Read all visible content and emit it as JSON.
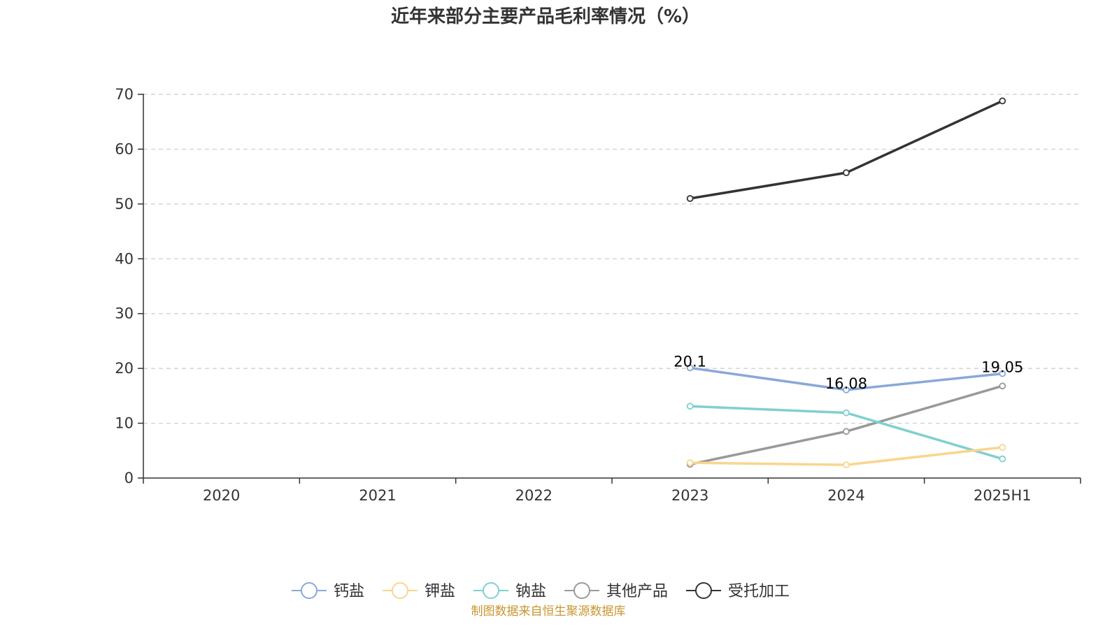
{
  "source_note": "制图数据来自恒生聚源数据库",
  "colors": {
    "source": "#c8962e",
    "axis": "#333333",
    "grid": "#cccccc"
  },
  "chart_data": {
    "type": "line",
    "title": "近年来部分主要产品毛利率情况（%）",
    "categories": [
      "2020",
      "2021",
      "2022",
      "2023",
      "2024",
      "2025H1"
    ],
    "ylim": [
      0,
      70
    ],
    "yticks": [
      0,
      10,
      20,
      30,
      40,
      50,
      60,
      70
    ],
    "grid": true,
    "legend_position": "bottom",
    "series": [
      {
        "name": "钙盐",
        "color": "#8aa8d8",
        "values": [
          null,
          null,
          null,
          20.1,
          16.08,
          19.05
        ],
        "show_labels": true
      },
      {
        "name": "钾盐",
        "color": "#f9d58e",
        "values": [
          null,
          null,
          null,
          2.8,
          2.4,
          5.6
        ],
        "show_labels": false
      },
      {
        "name": "钠盐",
        "color": "#80d0d0",
        "values": [
          null,
          null,
          null,
          13.1,
          11.9,
          3.5
        ],
        "show_labels": false
      },
      {
        "name": "其他产品",
        "color": "#999999",
        "values": [
          null,
          null,
          null,
          2.5,
          8.5,
          16.8
        ],
        "show_labels": false
      },
      {
        "name": "受托加工",
        "color": "#333333",
        "values": [
          null,
          null,
          null,
          51.0,
          55.7,
          68.8
        ],
        "show_labels": false
      }
    ]
  }
}
